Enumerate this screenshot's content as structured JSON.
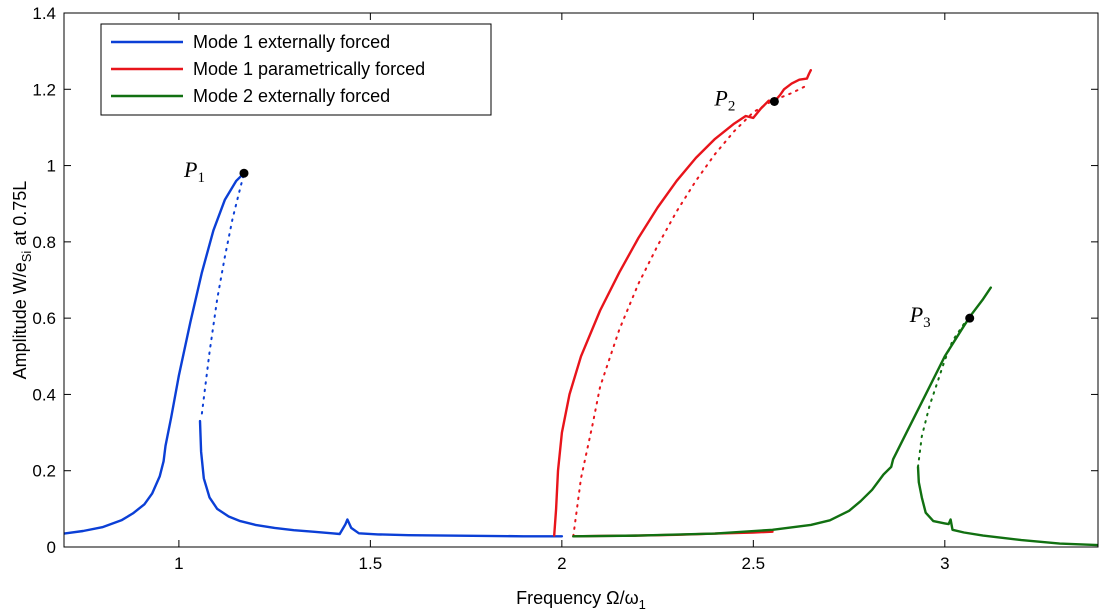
{
  "chart_data": {
    "type": "line",
    "xlabel": "Frequency Ω/ω",
    "xlabel_sub": "1",
    "ylabel": "Amplitude W/e",
    "ylabel_sub": "Si",
    "ylabel_suffix": " at 0.75L",
    "xlim": [
      0.7,
      3.4
    ],
    "ylim": [
      0,
      1.4
    ],
    "xticks": [
      1,
      1.5,
      2,
      2.5,
      3
    ],
    "xtick_labels": [
      "1",
      "1.5",
      "2",
      "2.5",
      "3"
    ],
    "yticks": [
      0,
      0.2,
      0.4,
      0.6,
      0.8,
      1,
      1.2,
      1.4
    ],
    "ytick_labels": [
      "0",
      "0.2",
      "0.4",
      "0.6",
      "0.8",
      "1",
      "1.2",
      "1.4"
    ],
    "grid": false,
    "legend_position": "top-left",
    "series": [
      {
        "name": "Mode 1 externally forced",
        "color": "#0b3fd6",
        "stable": [
          {
            "x": [
              0.7,
              0.75,
              0.8,
              0.85,
              0.88,
              0.91,
              0.93,
              0.95,
              0.96,
              0.965,
              0.98,
              1.0,
              1.03,
              1.06,
              1.09,
              1.12,
              1.15,
              1.17
            ],
            "y": [
              0.035,
              0.042,
              0.052,
              0.07,
              0.088,
              0.112,
              0.14,
              0.185,
              0.225,
              0.265,
              0.34,
              0.45,
              0.59,
              0.72,
              0.83,
              0.91,
              0.96,
              0.98
            ]
          },
          {
            "x": [
              1.055,
              1.058,
              1.065,
              1.08,
              1.1,
              1.13,
              1.16,
              1.2,
              1.25,
              1.3,
              1.35,
              1.4,
              1.42,
              1.435,
              1.44,
              1.45,
              1.47,
              1.52,
              1.6,
              1.7,
              1.8,
              1.9,
              2.0
            ],
            "y": [
              0.33,
              0.25,
              0.18,
              0.13,
              0.1,
              0.08,
              0.068,
              0.058,
              0.05,
              0.044,
              0.04,
              0.036,
              0.034,
              0.06,
              0.072,
              0.05,
              0.036,
              0.033,
              0.031,
              0.03,
              0.029,
              0.028,
              0.028
            ]
          }
        ],
        "unstable": [
          {
            "x": [
              1.06,
              1.08,
              1.1,
              1.12,
              1.14,
              1.155,
              1.165,
              1.17
            ],
            "y": [
              0.35,
              0.51,
              0.65,
              0.76,
              0.86,
              0.92,
              0.96,
              0.98
            ]
          }
        ]
      },
      {
        "name": "Mode 1 parametrically forced",
        "color": "#e8141b",
        "stable": [
          {
            "x": [
              1.98,
              1.985,
              1.99,
              2.0,
              2.02,
              2.05,
              2.1,
              2.15,
              2.2,
              2.25,
              2.3,
              2.35,
              2.4,
              2.45,
              2.48,
              2.5,
              2.52,
              2.54,
              2.555,
              2.57,
              2.58,
              2.6,
              2.62,
              2.64,
              2.645,
              2.65
            ],
            "y": [
              0.03,
              0.1,
              0.2,
              0.3,
              0.4,
              0.5,
              0.62,
              0.72,
              0.81,
              0.89,
              0.96,
              1.02,
              1.07,
              1.11,
              1.13,
              1.125,
              1.15,
              1.17,
              1.168,
              1.185,
              1.2,
              1.215,
              1.225,
              1.228,
              1.24,
              1.25
            ]
          },
          {
            "x": [
              2.03,
              2.1,
              2.2,
              2.3,
              2.4,
              2.5,
              2.55
            ],
            "y": [
              0.028,
              0.029,
              0.03,
              0.032,
              0.035,
              0.038,
              0.04
            ]
          }
        ],
        "unstable": [
          {
            "x": [
              2.03,
              2.05,
              2.08,
              2.1,
              2.15,
              2.2,
              2.25,
              2.3,
              2.35,
              2.4,
              2.45,
              2.5,
              2.55,
              2.6,
              2.64
            ],
            "y": [
              0.028,
              0.18,
              0.32,
              0.42,
              0.57,
              0.69,
              0.79,
              0.88,
              0.96,
              1.03,
              1.09,
              1.14,
              1.17,
              1.19,
              1.21
            ]
          }
        ]
      },
      {
        "name": "Mode 2 externally forced",
        "color": "#117011",
        "stable": [
          {
            "x": [
              2.03,
              2.2,
              2.4,
              2.55,
              2.65,
              2.7,
              2.75,
              2.78,
              2.81,
              2.84,
              2.86,
              2.865,
              2.9,
              2.95,
              3.0,
              3.05,
              3.07,
              3.1,
              3.12
            ],
            "y": [
              0.028,
              0.03,
              0.035,
              0.045,
              0.058,
              0.07,
              0.095,
              0.12,
              0.15,
              0.19,
              0.21,
              0.23,
              0.3,
              0.4,
              0.5,
              0.58,
              0.61,
              0.65,
              0.68
            ]
          },
          {
            "x": [
              2.93,
              2.932,
              2.94,
              2.95,
              2.97,
              3.0,
              3.01,
              3.015,
              3.02,
              3.05,
              3.1,
              3.2,
              3.3,
              3.4
            ],
            "y": [
              0.21,
              0.17,
              0.13,
              0.09,
              0.068,
              0.062,
              0.06,
              0.072,
              0.045,
              0.038,
              0.03,
              0.018,
              0.009,
              0.005
            ]
          }
        ],
        "unstable": [
          {
            "x": [
              2.93,
              2.94,
              2.96,
              2.98,
              3.0,
              3.02,
              3.04,
              3.06
            ],
            "y": [
              0.21,
              0.29,
              0.37,
              0.43,
              0.49,
              0.54,
              0.57,
              0.6
            ]
          }
        ]
      }
    ],
    "annotations": [
      {
        "label": "P",
        "sub": "1",
        "x": 1.17,
        "y": 0.98,
        "label_side": "left"
      },
      {
        "label": "P",
        "sub": "2",
        "x": 2.555,
        "y": 1.168,
        "label_side": "left"
      },
      {
        "label": "P",
        "sub": "3",
        "x": 3.065,
        "y": 0.6,
        "label_side": "left"
      }
    ]
  }
}
